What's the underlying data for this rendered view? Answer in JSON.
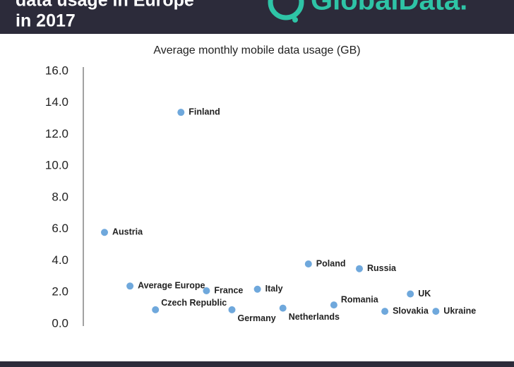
{
  "header": {
    "title_lines": [
      "data usage in Europe",
      "in 2017"
    ],
    "logo": "GlobalData."
  },
  "chart_data": {
    "type": "scatter",
    "subtitle": "Average monthly mobile data usage (GB)",
    "categories": [
      "Austria",
      "Average Europe",
      "Czech Republic",
      "Finland",
      "France",
      "Germany",
      "Italy",
      "Netherlands",
      "Poland",
      "Romania",
      "Russia",
      "Slovakia",
      "UK",
      "Ukraine"
    ],
    "values": [
      5.8,
      2.4,
      0.9,
      13.4,
      2.1,
      0.9,
      2.2,
      1.0,
      3.8,
      1.2,
      3.5,
      0.8,
      1.9,
      0.8
    ],
    "color": "#6fa8dc",
    "ylim": [
      0,
      16
    ],
    "yticks": [
      {
        "value": 0,
        "label": "0.0"
      },
      {
        "value": 2,
        "label": "2.0"
      },
      {
        "value": 4,
        "label": "4.0"
      },
      {
        "value": 6,
        "label": "6.0"
      },
      {
        "value": 8,
        "label": "8.0"
      },
      {
        "value": 10,
        "label": "10.0"
      },
      {
        "value": 12,
        "label": "12.0"
      },
      {
        "value": 14,
        "label": "14.0"
      },
      {
        "value": 16,
        "label": "16.0"
      }
    ],
    "grid": false
  }
}
